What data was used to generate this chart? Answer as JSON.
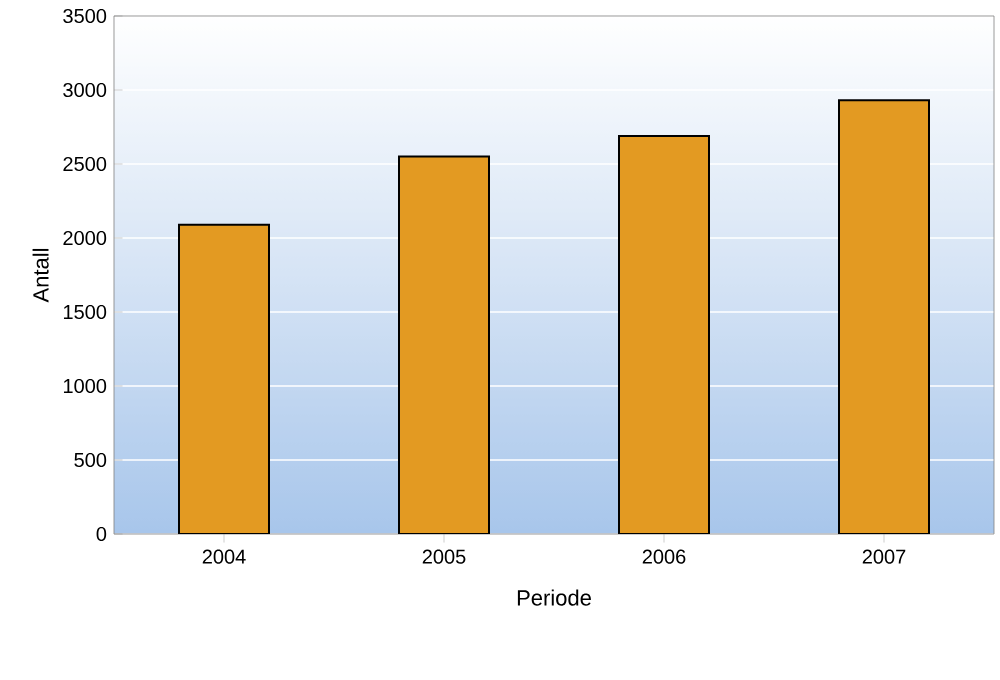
{
  "chart_data": {
    "type": "bar",
    "xlabel": "Periode",
    "ylabel": "Antall",
    "categories": [
      "2004",
      "2005",
      "2006",
      "2007"
    ],
    "values": [
      2090,
      2550,
      2690,
      2930
    ],
    "color": "#e39a22",
    "ylim": [
      0,
      3500
    ],
    "yticks": [
      0,
      500,
      1000,
      1500,
      2000,
      2500,
      3000,
      3500
    ],
    "grid": "y"
  }
}
